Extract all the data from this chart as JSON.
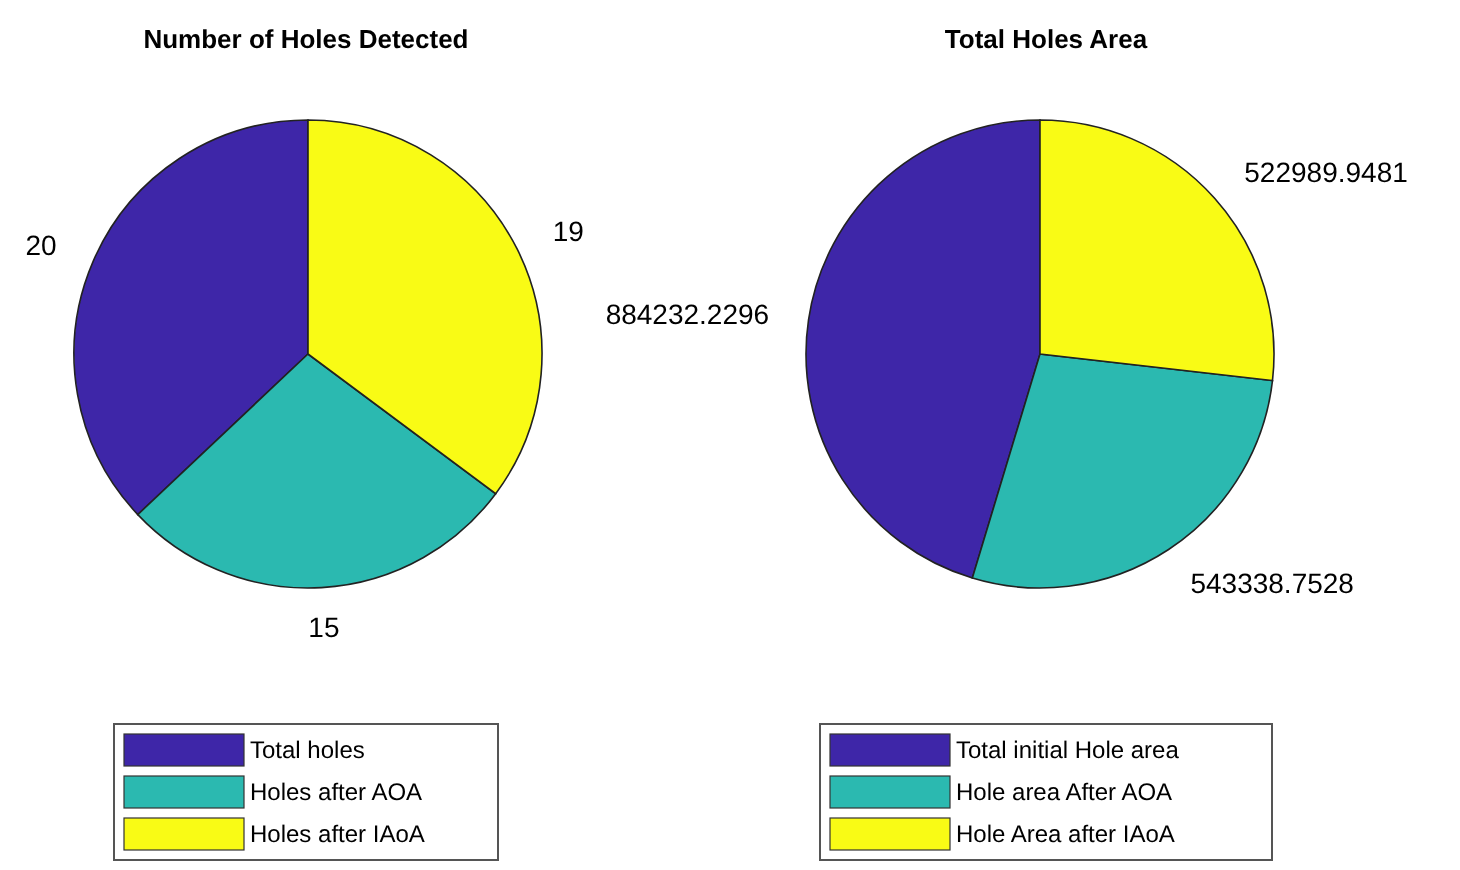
{
  "chart_data": [
    {
      "type": "pie",
      "title": "Number of Holes Detected",
      "categories": [
        "Total holes",
        "Holes after AOA",
        "Holes after IAoA"
      ],
      "values": [
        20,
        15,
        19
      ],
      "colors": [
        "#3e26a8",
        "#2bb9b0",
        "#f9fb15"
      ],
      "data_labels": true,
      "legend": "bottom"
    },
    {
      "type": "pie",
      "title": "Total Holes Area",
      "categories": [
        "Total initial Hole area",
        "Hole area After AOA",
        "Hole Area after IAoA"
      ],
      "values": [
        884232.2296,
        543338.7528,
        522989.9481
      ],
      "colors": [
        "#3e26a8",
        "#2bb9b0",
        "#f9fb15"
      ],
      "data_labels": true,
      "legend": "bottom"
    }
  ]
}
